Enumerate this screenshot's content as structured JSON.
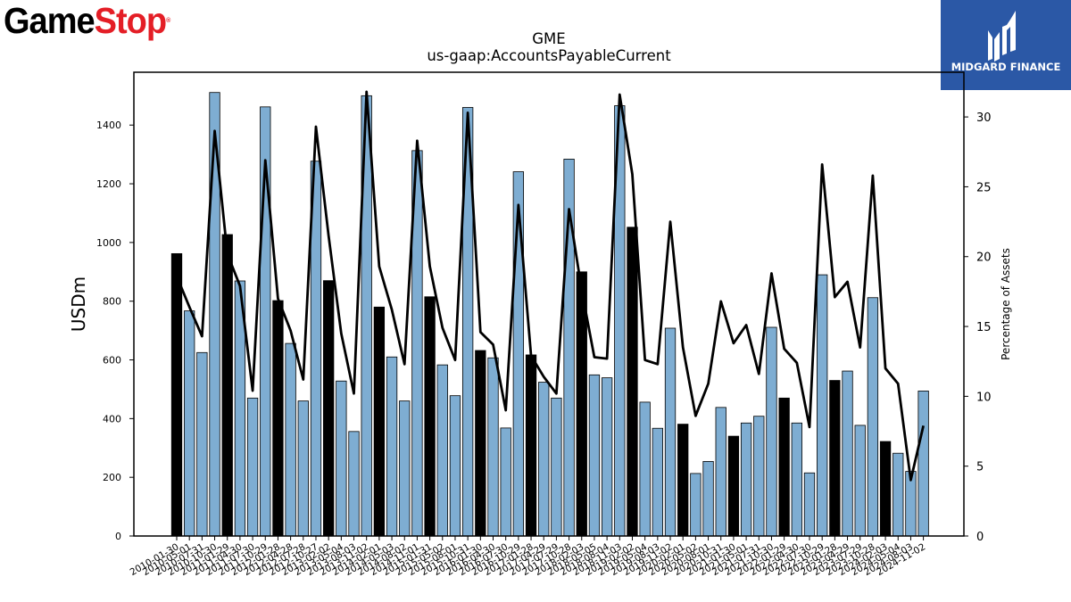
{
  "logos": {
    "left_part1": "Game",
    "left_part2": "Stop",
    "left_mark": "®",
    "right_text": "MIDGARD FINANCE"
  },
  "colors": {
    "bar_light": "#7eadd2",
    "bar_dark": "#000000",
    "line": "#000000",
    "brand_red": "#e41e26",
    "brand_blue": "#2b58a6"
  },
  "chart_data": {
    "type": "bar",
    "title": "GME",
    "subtitle": "us-gaap:AccountsPayableCurrent",
    "ylabel": "USDm",
    "y2label": "Percentage of Assets",
    "ylim": [
      0,
      1580
    ],
    "y2lim": [
      0,
      33.2
    ],
    "yticks": [
      0,
      200,
      400,
      600,
      800,
      1000,
      1200,
      1400
    ],
    "y2ticks": [
      0,
      5,
      10,
      15,
      20,
      25,
      30
    ],
    "categories": [
      "2010-01-30",
      "2010-05-01",
      "2010-07-31",
      "2010-10-30",
      "2011-01-29",
      "2011-04-30",
      "2011-07-30",
      "2011-10-29",
      "2012-01-28",
      "2012-04-28",
      "2012-07-28",
      "2012-10-27",
      "2013-02-02",
      "2013-05-04",
      "2013-08-03",
      "2013-11-02",
      "2014-02-01",
      "2014-05-03",
      "2014-08-02",
      "2014-11-01",
      "2015-01-31",
      "2015-05-02",
      "2015-08-01",
      "2015-10-31",
      "2016-01-30",
      "2016-04-30",
      "2016-07-30",
      "2016-10-29",
      "2017-01-28",
      "2017-04-29",
      "2017-07-29",
      "2017-10-28",
      "2018-02-03",
      "2018-05-05",
      "2018-08-04",
      "2018-11-03",
      "2019-02-02",
      "2019-05-04",
      "2019-08-03",
      "2019-11-02",
      "2020-02-01",
      "2020-05-02",
      "2020-08-01",
      "2020-10-31",
      "2021-01-30",
      "2021-05-01",
      "2021-07-31",
      "2021-10-30",
      "2022-01-29",
      "2022-04-30",
      "2022-07-30",
      "2022-10-29",
      "2023-01-28",
      "2023-04-29",
      "2023-07-29",
      "2023-10-28",
      "2024-02-03",
      "2024-05-04",
      "2024-08-03",
      "2024-11-02"
    ],
    "visible_tick_labels": [
      "2010-01-30",
      "2010-05-01",
      "2010-07-31",
      "2010-10-30",
      "2011-01-29",
      "2011-04-30",
      "2011-07-30",
      "2011-10-29",
      "2012-01-28",
      "2012-04-28",
      "2012-07-28",
      "2012-10-27",
      "2013-02-02",
      "2013-05-04",
      "2013-08-03",
      "2013-11-02",
      "2014-02-01",
      "2014-05-03",
      "2014-08-02",
      "2014-11-01",
      "2015-01-31",
      "2015-05-02",
      "2015-08-01",
      "2015-10-31",
      "2016-01-30",
      "2016-04-30",
      "2016-07-30",
      "2016-10-29",
      "2017-01-28",
      "2017-04-29",
      "2017-07-29",
      "2017-10-28",
      "2018-02-03",
      "2018-05-05",
      "2018-08-04",
      "2018-11-03",
      "2019-02-02",
      "2019-05-04",
      "2019-08-03",
      "2019-11-02",
      "2020-02-01",
      "2020-05-02",
      "2020-08-01",
      "2020-10-31",
      "2021-01-30",
      "2021-05-01",
      "2021-07-31",
      "2021-10-30",
      "2022-01-29",
      "2022-04-30",
      "2022-07-30",
      "2022-10-29",
      "2023-01-28",
      "2023-04-29",
      "2023-07-29",
      "2023-10-28",
      "2024-02-03",
      "2024-05-04",
      "2024-08-03",
      "2024-11-02"
    ],
    "series": [
      {
        "type": "bar",
        "values": [
          962,
          767,
          625,
          1511,
          1027,
          869,
          470,
          1462,
          802,
          656,
          460,
          1277,
          870,
          528,
          356,
          1500,
          780,
          610,
          460,
          1313,
          815,
          583,
          478,
          1460,
          632,
          607,
          368,
          1241,
          617,
          524,
          470,
          1284,
          900,
          549,
          539,
          1466,
          1052,
          456,
          367,
          708,
          381,
          213,
          254,
          438,
          340,
          385,
          408,
          711,
          470,
          385,
          215,
          890,
          530,
          562,
          377,
          812,
          322,
          282,
          220,
          494
        ],
        "dark_flags": [
          1,
          0,
          0,
          0,
          1,
          0,
          0,
          0,
          1,
          0,
          0,
          0,
          1,
          0,
          0,
          0,
          1,
          0,
          0,
          0,
          1,
          0,
          0,
          0,
          1,
          0,
          0,
          0,
          1,
          0,
          0,
          0,
          1,
          0,
          0,
          0,
          1,
          0,
          0,
          0,
          1,
          0,
          0,
          0,
          1,
          0,
          0,
          0,
          1,
          0,
          0,
          0,
          1,
          0,
          0,
          0,
          1,
          0,
          0,
          0
        ]
      },
      {
        "type": "line",
        "axis": "right",
        "values": [
          18.6,
          16.4,
          14.3,
          29.0,
          20.2,
          17.9,
          10.4,
          26.9,
          17.0,
          14.7,
          11.2,
          29.3,
          21.5,
          14.5,
          10.2,
          31.8,
          19.3,
          16.2,
          12.3,
          28.3,
          19.3,
          14.9,
          12.6,
          30.3,
          14.6,
          13.7,
          9.0,
          23.7,
          12.9,
          11.4,
          10.2,
          23.4,
          17.6,
          12.8,
          12.7,
          31.6,
          25.9,
          12.6,
          12.3,
          22.5,
          13.5,
          8.6,
          10.9,
          16.8,
          13.8,
          15.1,
          11.6,
          18.8,
          13.4,
          12.4,
          7.8,
          26.6,
          17.1,
          18.2,
          13.5,
          25.8,
          12.0,
          10.9,
          4.0,
          7.9
        ]
      }
    ],
    "grid": false,
    "legend": "none"
  }
}
